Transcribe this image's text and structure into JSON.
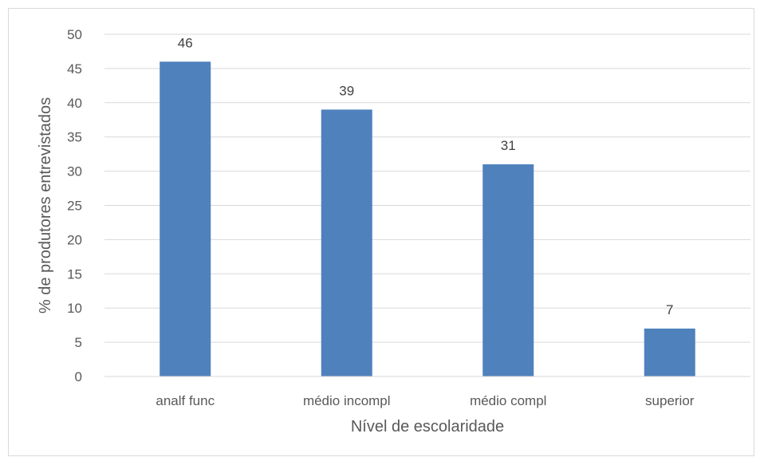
{
  "chart_data": {
    "type": "bar",
    "categories": [
      "analf func",
      "médio incompl",
      "médio compl",
      "superior"
    ],
    "values": [
      46,
      39,
      31,
      7
    ],
    "data_labels": [
      "46",
      "39",
      "31",
      "7"
    ],
    "title": "",
    "xlabel": "Nível de escolaridade",
    "ylabel": "% de produtores entrevistados",
    "ylim": [
      0,
      50
    ],
    "yticks": [
      0,
      5,
      10,
      15,
      20,
      25,
      30,
      35,
      40,
      45,
      50
    ],
    "grid": true,
    "legend": "none",
    "bar_color": "#4f81bd"
  }
}
